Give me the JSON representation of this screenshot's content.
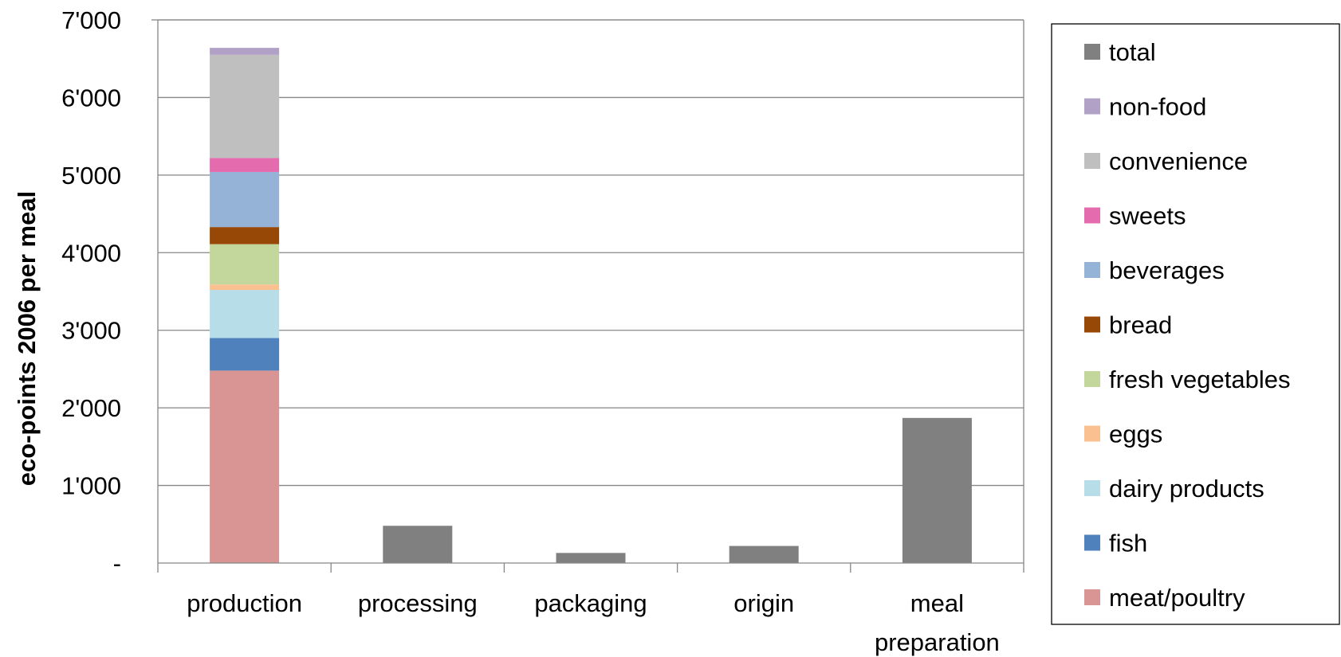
{
  "chart_data": {
    "type": "bar",
    "stacked": true,
    "title": "",
    "xlabel": "",
    "ylabel": "eco-points 2006 per meal",
    "ylim": [
      0,
      7000
    ],
    "yticks": [
      0,
      1000,
      2000,
      3000,
      4000,
      5000,
      6000,
      7000
    ],
    "ytick_labels": [
      "-",
      "1'000",
      "2'000",
      "3'000",
      "4'000",
      "5'000",
      "6'000",
      "7'000"
    ],
    "grid": true,
    "legend_position": "right",
    "categories": [
      "production",
      "processing",
      "packaging",
      "origin",
      "meal preparation"
    ],
    "category_labels": [
      [
        "production"
      ],
      [
        "processing"
      ],
      [
        "packaging"
      ],
      [
        "origin"
      ],
      [
        "meal",
        "preparation"
      ]
    ],
    "series": [
      {
        "name": "meat/poultry",
        "color": "#D99594",
        "values": [
          2480,
          0,
          0,
          0,
          0
        ]
      },
      {
        "name": "fish",
        "color": "#4F81BD",
        "values": [
          420,
          0,
          0,
          0,
          0
        ]
      },
      {
        "name": "dairy products",
        "color": "#B7DEE8",
        "values": [
          620,
          0,
          0,
          0,
          0
        ]
      },
      {
        "name": "eggs",
        "color": "#FAC090",
        "values": [
          70,
          0,
          0,
          0,
          0
        ]
      },
      {
        "name": "fresh vegetables",
        "color": "#C3D69B",
        "values": [
          520,
          0,
          0,
          0,
          0
        ]
      },
      {
        "name": "bread",
        "color": "#974706",
        "values": [
          220,
          0,
          0,
          0,
          0
        ]
      },
      {
        "name": "beverages",
        "color": "#95B3D7",
        "values": [
          710,
          0,
          0,
          0,
          0
        ]
      },
      {
        "name": "sweets",
        "color": "#E46CAE",
        "values": [
          180,
          0,
          0,
          0,
          0
        ]
      },
      {
        "name": "convenience",
        "color": "#BFBFBF",
        "values": [
          1330,
          0,
          0,
          0,
          0
        ]
      },
      {
        "name": "non-food",
        "color": "#B2A1C7",
        "values": [
          90,
          0,
          0,
          0,
          0
        ]
      },
      {
        "name": "total",
        "color": "#808080",
        "values": [
          0,
          480,
          130,
          220,
          1870
        ]
      }
    ],
    "legend_order": [
      "total",
      "non-food",
      "convenience",
      "sweets",
      "beverages",
      "bread",
      "fresh vegetables",
      "eggs",
      "dairy products",
      "fish",
      "meat/poultry"
    ]
  }
}
